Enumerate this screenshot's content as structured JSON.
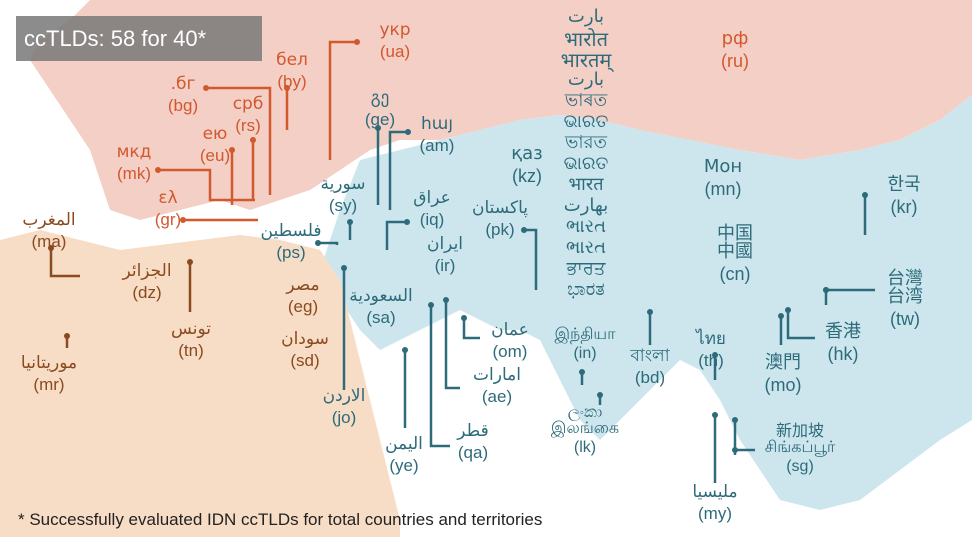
{
  "title": "ccTLDs: 58 for 40*",
  "footnote": "* Successfully evaluated IDN ccTLDs for total countries and territories",
  "colors": {
    "cyrillic": "#d2582e",
    "arabic": "#8b4a1f",
    "asian": "#2d6b7a",
    "europe_fill": "#f4cfc6",
    "africa_fill": "#f7dcc6",
    "asia_fill": "#cde6ee",
    "sea": "#ffffff"
  },
  "labels": [
    {
      "id": "ua",
      "script": "укр",
      "code": "(ua)",
      "color": "cyrillic"
    },
    {
      "id": "by",
      "script": "бел",
      "code": "(by)",
      "color": "cyrillic"
    },
    {
      "id": "bg",
      "script": ".бг",
      "code": "(bg)",
      "color": "cyrillic"
    },
    {
      "id": "rs",
      "script": "срб",
      "code": "(rs)",
      "color": "cyrillic"
    },
    {
      "id": "eu",
      "script": "ею",
      "code": "(eu)",
      "color": "cyrillic"
    },
    {
      "id": "mk",
      "script": "мкд",
      "code": "(mk)",
      "color": "cyrillic"
    },
    {
      "id": "gr",
      "script": "ελ",
      "code": "(gr)",
      "color": "cyrillic"
    },
    {
      "id": "ru",
      "script": "рф",
      "code": "(ru)",
      "color": "cyrillic"
    },
    {
      "id": "ge",
      "script": "გე",
      "code": "(ge)",
      "color": "asian"
    },
    {
      "id": "am",
      "script": "հայ",
      "code": "(am)",
      "color": "asian"
    },
    {
      "id": "sy",
      "script": "سورية",
      "code": "(sy)",
      "color": "asian"
    },
    {
      "id": "iq",
      "script": "عراق",
      "code": "(iq)",
      "color": "asian"
    },
    {
      "id": "ps",
      "script": "فلسطين",
      "code": "(ps)",
      "color": "asian"
    },
    {
      "id": "ir",
      "script": "ایران",
      "code": "(ir)",
      "color": "asian"
    },
    {
      "id": "kz",
      "script": "қаз",
      "code": "(kz)",
      "color": "asian"
    },
    {
      "id": "pk",
      "script": "پاکستان",
      "code": "(pk)",
      "color": "asian"
    },
    {
      "id": "mn",
      "script": "Мон",
      "code": "(mn)",
      "color": "asian"
    },
    {
      "id": "cn",
      "script": "中国\n中國",
      "code": "(cn)",
      "color": "asian"
    },
    {
      "id": "kr",
      "script": "한국",
      "code": "(kr)",
      "color": "asian"
    },
    {
      "id": "tw",
      "script": "台灣\n台湾",
      "code": "(tw)",
      "color": "asian"
    },
    {
      "id": "hk",
      "script": "香港",
      "code": "(hk)",
      "color": "asian"
    },
    {
      "id": "mo",
      "script": "澳門",
      "code": "(mo)",
      "color": "asian"
    },
    {
      "id": "th",
      "script": "ไทย",
      "code": "(th)",
      "color": "asian"
    },
    {
      "id": "sg",
      "script": "新加坡\nசிங்கப்பூர்",
      "code": "(sg)",
      "color": "asian"
    },
    {
      "id": "my",
      "script": "مليسيا",
      "code": "(my)",
      "color": "asian"
    },
    {
      "id": "bd",
      "script": "বাংলা",
      "code": "(bd)",
      "color": "asian"
    },
    {
      "id": "in",
      "script": "இந்தியா",
      "code": "(in)",
      "color": "asian"
    },
    {
      "id": "lk",
      "script": "ලංකා\nஇலங்கை",
      "code": "(lk)",
      "color": "asian"
    },
    {
      "id": "sa",
      "script": "السعودية",
      "code": "(sa)",
      "color": "asian"
    },
    {
      "id": "om",
      "script": "عمان",
      "code": "(om)",
      "color": "asian"
    },
    {
      "id": "ae",
      "script": "امارات",
      "code": "(ae)",
      "color": "asian"
    },
    {
      "id": "qa",
      "script": "قطر",
      "code": "(qa)",
      "color": "asian"
    },
    {
      "id": "ye",
      "script": "اليمن",
      "code": "(ye)",
      "color": "asian"
    },
    {
      "id": "jo",
      "script": "الاردن",
      "code": "(jo)",
      "color": "asian"
    },
    {
      "id": "eg",
      "script": "مصر",
      "code": "(eg)",
      "color": "arabic"
    },
    {
      "id": "sd",
      "script": "سودان",
      "code": "(sd)",
      "color": "arabic"
    },
    {
      "id": "ma",
      "script": "المغرب",
      "code": "(ma)",
      "color": "arabic"
    },
    {
      "id": "dz",
      "script": "الجزائر",
      "code": "(dz)",
      "color": "arabic"
    },
    {
      "id": "tn",
      "script": "تونس",
      "code": "(tn)",
      "color": "arabic"
    },
    {
      "id": "mr",
      "script": "موريتانيا",
      "code": "(mr)",
      "color": "arabic"
    }
  ],
  "india_scripts": [
    "بارت",
    "भारोत",
    "भारतम्",
    "بارت",
    "ভাৰত",
    "ଭାରତ",
    "ভারত",
    "ଭାରତ",
    "भारत",
    "بھارت",
    "ભારત",
    "ભારત",
    "ਭਾਰਤ",
    "ಭಾರತ"
  ]
}
